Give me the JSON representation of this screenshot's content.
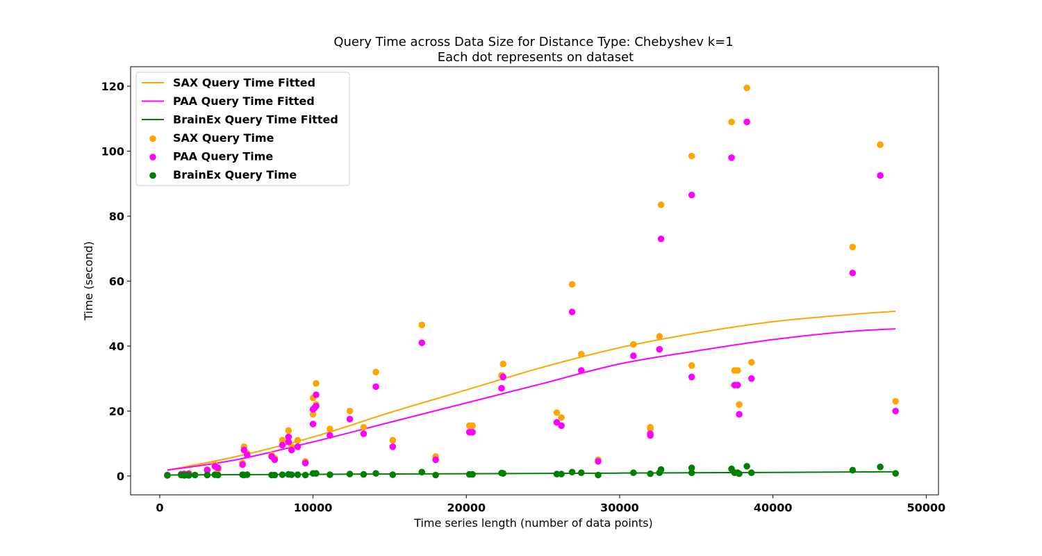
{
  "chart_data": {
    "type": "scatter",
    "title": "Query Time across Data Size for Distance Type: Chebyshev k=1",
    "subtitle": "Each dot represents on dataset",
    "xlabel": "Time series length (number of data points)",
    "ylabel": "Time (second)",
    "xlim": [
      -1900,
      50800
    ],
    "ylim": [
      -5.8,
      126
    ],
    "xticks": [
      0,
      10000,
      20000,
      30000,
      40000,
      50000
    ],
    "yticks": [
      0,
      20,
      40,
      60,
      80,
      100,
      120
    ],
    "grid": false,
    "legend_position": "top-left",
    "series": [
      {
        "name": "SAX Query Time Fitted",
        "kind": "line",
        "color": "#FFA500",
        "x": [
          500,
          5000,
          10000,
          15000,
          20000,
          25000,
          30000,
          35000,
          40000,
          45000,
          48000
        ],
        "y": [
          1.8,
          6.0,
          12.0,
          19.5,
          26.5,
          33.5,
          39.5,
          44.0,
          47.5,
          49.7,
          50.7
        ]
      },
      {
        "name": "PAA Query Time Fitted",
        "kind": "line",
        "color": "#FF00FF",
        "x": [
          500,
          5000,
          10000,
          15000,
          20000,
          25000,
          30000,
          35000,
          40000,
          45000,
          48000
        ],
        "y": [
          1.8,
          5.0,
          10.5,
          16.5,
          22.5,
          28.5,
          34.5,
          38.5,
          42.0,
          44.5,
          45.3
        ]
      },
      {
        "name": "BrainEx Query Time Fitted",
        "kind": "line",
        "color": "#008000",
        "x": [
          500,
          10000,
          20000,
          30000,
          40000,
          48000
        ],
        "y": [
          0.3,
          0.5,
          0.7,
          0.9,
          1.1,
          1.3
        ]
      },
      {
        "name": "SAX Query Time",
        "kind": "scatter",
        "color": "#FFA500",
        "x": [
          500,
          1400,
          1600,
          1800,
          1900,
          3100,
          3600,
          3800,
          5400,
          5500,
          5700,
          7300,
          7500,
          8000,
          8400,
          8400,
          8600,
          9000,
          9500,
          10000,
          10000,
          10100,
          10200,
          10200,
          11100,
          12400,
          13300,
          14100,
          15200,
          17100,
          18000,
          20200,
          20400,
          22300,
          22400,
          25900,
          26200,
          26900,
          27500,
          28600,
          30900,
          32000,
          32000,
          32600,
          32700,
          34700,
          34700,
          37300,
          37500,
          37700,
          37800,
          38300,
          38600,
          45200,
          47000,
          48000
        ],
        "y": [
          0.3,
          0.6,
          0.7,
          0.6,
          0.8,
          2.0,
          3.5,
          2.0,
          4.0,
          9.0,
          7.0,
          6.5,
          5.5,
          11.0,
          14.0,
          12.0,
          9.0,
          11.0,
          4.5,
          19.0,
          24.0,
          21.0,
          28.5,
          22.0,
          14.5,
          20.0,
          15.0,
          32.0,
          11.0,
          46.5,
          6.0,
          15.5,
          15.5,
          31.0,
          34.5,
          19.5,
          18.0,
          59.0,
          37.5,
          5.0,
          40.5,
          15.0,
          14.5,
          43.0,
          83.5,
          34.0,
          98.5,
          109.0,
          32.5,
          32.5,
          22.0,
          119.5,
          35.0,
          70.5,
          102.0,
          23.0
        ]
      },
      {
        "name": "PAA Query Time",
        "kind": "scatter",
        "color": "#FF00FF",
        "x": [
          500,
          1400,
          1600,
          1800,
          1900,
          3100,
          3600,
          3800,
          5400,
          5500,
          5700,
          7300,
          7500,
          8000,
          8400,
          8400,
          8600,
          9000,
          9500,
          10000,
          10000,
          10100,
          10200,
          10200,
          11100,
          12400,
          13300,
          14100,
          15200,
          17100,
          18000,
          20200,
          20400,
          22300,
          22400,
          25900,
          26200,
          26900,
          27500,
          28600,
          30900,
          32000,
          32000,
          32600,
          32700,
          34700,
          34700,
          37300,
          37500,
          37700,
          37800,
          38300,
          38600,
          45200,
          47000,
          48000
        ],
        "y": [
          0.3,
          0.5,
          0.6,
          0.5,
          0.7,
          1.8,
          3.0,
          2.5,
          3.5,
          8.0,
          6.5,
          6.0,
          5.0,
          9.5,
          12.0,
          10.5,
          8.0,
          9.0,
          4.0,
          16.0,
          20.5,
          21.0,
          25.0,
          21.5,
          12.5,
          17.5,
          13.0,
          27.5,
          9.0,
          41.0,
          5.0,
          13.5,
          13.5,
          27.0,
          30.5,
          16.5,
          15.5,
          50.5,
          32.5,
          4.5,
          37.0,
          13.0,
          12.5,
          39.0,
          73.0,
          30.5,
          86.5,
          98.0,
          28.0,
          28.0,
          19.0,
          109.0,
          30.0,
          62.5,
          92.5,
          20.0
        ]
      },
      {
        "name": "BrainEx Query Time",
        "kind": "scatter",
        "color": "#008000",
        "x": [
          500,
          1400,
          1600,
          1800,
          1900,
          2300,
          3100,
          3600,
          3800,
          5400,
          5500,
          5700,
          7300,
          7500,
          8000,
          8400,
          8600,
          9000,
          9500,
          10000,
          10200,
          11100,
          12400,
          13300,
          14100,
          15200,
          17100,
          18000,
          20200,
          20400,
          22300,
          22400,
          25900,
          26200,
          26900,
          27500,
          28600,
          30900,
          32000,
          32600,
          32700,
          34700,
          34700,
          37300,
          37500,
          37700,
          37800,
          38300,
          38600,
          45200,
          47000,
          48000
        ],
        "y": [
          0.2,
          0.3,
          0.2,
          0.3,
          0.2,
          0.3,
          0.3,
          0.4,
          0.3,
          0.4,
          0.3,
          0.4,
          0.3,
          0.3,
          0.4,
          0.5,
          0.4,
          0.4,
          0.3,
          0.8,
          0.8,
          0.4,
          0.6,
          0.5,
          0.8,
          0.4,
          1.2,
          0.3,
          0.5,
          0.5,
          0.9,
          0.8,
          0.6,
          0.6,
          1.2,
          1.0,
          0.3,
          1.0,
          0.7,
          1.0,
          2.0,
          1.0,
          2.5,
          2.2,
          1.0,
          1.0,
          0.7,
          3.0,
          1.0,
          1.8,
          2.8,
          0.8
        ]
      }
    ]
  }
}
